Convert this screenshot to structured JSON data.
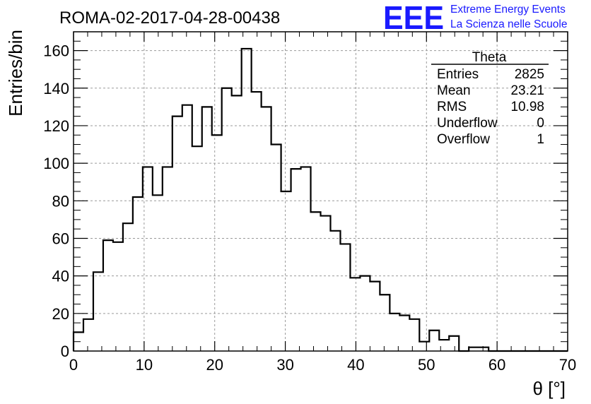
{
  "chart_data": {
    "type": "histogram",
    "title": "ROMA-02-2017-04-28-00438",
    "xlabel": "θ [°]",
    "ylabel": "Entries/bin",
    "xlim": [
      0,
      70
    ],
    "ylim": [
      0,
      170
    ],
    "xticks": [
      "0",
      "10",
      "20",
      "30",
      "40",
      "50",
      "60",
      "70"
    ],
    "yticks": [
      "0",
      "20",
      "40",
      "60",
      "80",
      "100",
      "120",
      "140",
      "160"
    ],
    "grid": true,
    "bin_width": 1.4,
    "bin_edges_start": 0,
    "values": [
      10,
      17,
      42,
      59,
      58,
      68,
      82,
      98,
      83,
      98,
      125,
      131,
      109,
      130,
      115,
      140,
      136,
      161,
      138,
      130,
      110,
      85,
      97,
      98,
      74,
      72,
      64,
      57,
      39,
      40,
      37,
      30,
      20,
      19,
      17,
      5,
      11,
      6,
      8,
      0,
      2,
      2,
      0,
      0,
      0,
      0,
      0,
      0,
      0,
      0
    ],
    "stats": {
      "name": "Theta",
      "rows": [
        {
          "label": "Entries",
          "value": "2825"
        },
        {
          "label": "Mean",
          "value": "23.21"
        },
        {
          "label": "RMS",
          "value": "10.98"
        },
        {
          "label": "Underflow",
          "value": "0"
        },
        {
          "label": "Overflow",
          "value": "1"
        }
      ]
    }
  },
  "logo": {
    "mark": "EEE",
    "line1": "Extreme Energy Events",
    "line2": "La Scienza nelle Scuole",
    "color": "#1a1aff"
  }
}
